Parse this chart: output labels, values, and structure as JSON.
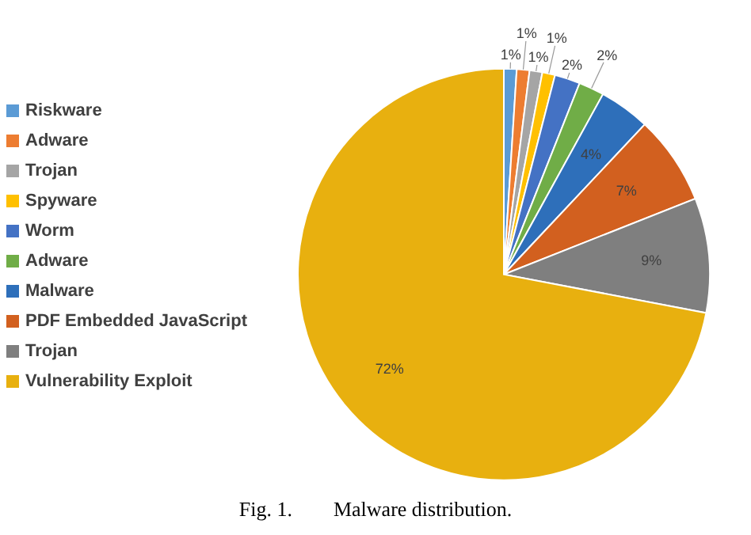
{
  "chart_data": {
    "type": "pie",
    "categories": [
      "Riskware",
      "Adware",
      "Trojan",
      "Spyware",
      "Worm",
      "Adware",
      "Malware",
      "PDF Embedded JavaScript",
      "Trojan",
      "Vulnerability Exploit"
    ],
    "values": [
      1,
      1,
      1,
      1,
      2,
      2,
      4,
      7,
      9,
      72
    ],
    "value_labels": [
      "1%",
      "1%",
      "1%",
      "1%",
      "2%",
      "2%",
      "4%",
      "7%",
      "9%",
      "72%"
    ],
    "colors": [
      "#5b9bd5",
      "#ed7d31",
      "#a5a5a5",
      "#ffc000",
      "#4472c4",
      "#70ad47",
      "#2e6fba",
      "#d2601f",
      "#7f7f7f",
      "#e8b00f"
    ],
    "legend": "left",
    "annotations": [
      "Fig. 1.        Malware distribution."
    ]
  }
}
